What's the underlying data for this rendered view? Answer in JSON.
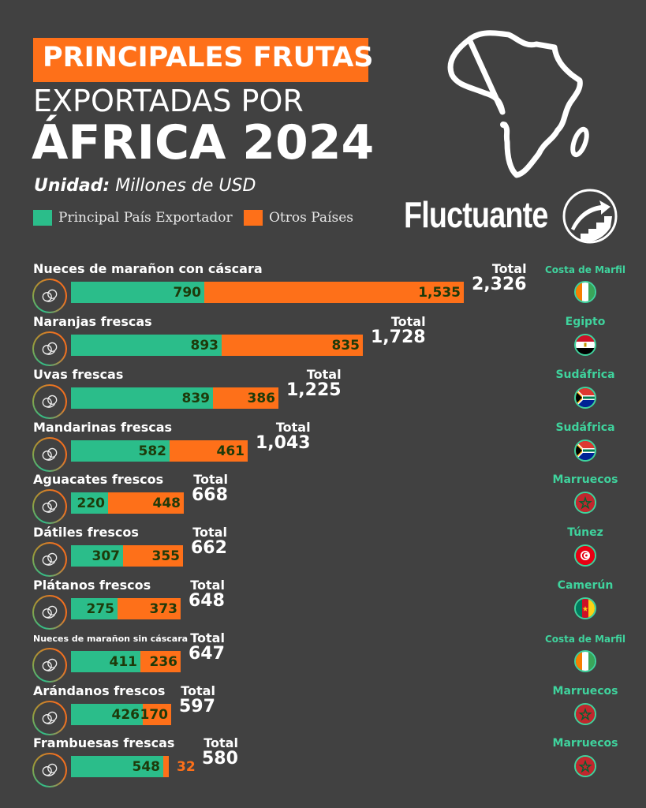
{
  "header": {
    "title_line1": "PRINCIPALES FRUTAS",
    "title_line2": "EXPORTADAS POR",
    "title_line3": "ÁFRICA 2024",
    "unit_label": "Unidad:",
    "unit_value": " Millones de USD",
    "brand": "Fluctuante"
  },
  "legend": {
    "items": [
      {
        "label": "Principal País Exportador",
        "color": "#2bbd8a"
      },
      {
        "label": "Otros Países",
        "color": "#fe7019"
      }
    ]
  },
  "total_label": "Total",
  "colors": {
    "background": "#414141",
    "green": "#2bbd8a",
    "orange": "#fe7019",
    "country_text": "#3fd39d"
  },
  "rows": [
    {
      "label": "Nueces de marañon con cáscara",
      "principal": "790",
      "otros": "1,535",
      "total": "2,326",
      "country": "Costa de Marfil",
      "flag": "ivory-coast"
    },
    {
      "label": "Naranjas frescas",
      "principal": "893",
      "otros": "835",
      "total": "1,728",
      "country": "Egipto",
      "flag": "egypt"
    },
    {
      "label": "Uvas frescas",
      "principal": "839",
      "otros": "386",
      "total": "1,225",
      "country": "Sudáfrica",
      "flag": "south-africa"
    },
    {
      "label": "Mandarinas frescas",
      "principal": "582",
      "otros": "461",
      "total": "1,043",
      "country": "Sudáfrica",
      "flag": "south-africa"
    },
    {
      "label": "Aguacates frescos",
      "principal": "220",
      "otros": "448",
      "total": "668",
      "country": "Marruecos",
      "flag": "morocco"
    },
    {
      "label": "Dátiles frescos",
      "principal": "307",
      "otros": "355",
      "total": "662",
      "country": "Túnez",
      "flag": "tunisia"
    },
    {
      "label": "Plátanos frescos",
      "principal": "275",
      "otros": "373",
      "total": "648",
      "country": "Camerún",
      "flag": "cameroon"
    },
    {
      "label": "Nueces de marañon sin cáscara",
      "principal": "411",
      "otros": "236",
      "total": "647",
      "country": "Costa de Marfil",
      "flag": "ivory-coast"
    },
    {
      "label": "Arándanos frescos",
      "principal": "426",
      "otros": "170",
      "total": "597",
      "country": "Marruecos",
      "flag": "morocco"
    },
    {
      "label": "Frambuesas frescas",
      "principal": "548",
      "otros": "32",
      "total": "580",
      "country": "Marruecos",
      "flag": "morocco"
    }
  ],
  "chart_data": {
    "type": "bar",
    "orientation": "horizontal",
    "stacked": true,
    "title": "Principales frutas exportadas por África 2024",
    "subtitle": "Unidad: Millones de USD",
    "categories": [
      "Nueces de marañon con cáscara",
      "Naranjas frescas",
      "Uvas frescas",
      "Mandarinas frescas",
      "Aguacates frescos",
      "Dátiles frescos",
      "Plátanos frescos",
      "Nueces de marañon sin cáscara",
      "Arándanos frescos",
      "Frambuesas frescas"
    ],
    "series": [
      {
        "name": "Principal País Exportador",
        "color": "#2bbd8a",
        "values": [
          790,
          893,
          839,
          582,
          220,
          307,
          275,
          411,
          426,
          548
        ]
      },
      {
        "name": "Otros Países",
        "color": "#fe7019",
        "values": [
          1535,
          835,
          386,
          461,
          448,
          355,
          373,
          236,
          170,
          32
        ]
      }
    ],
    "totals": [
      2326,
      1728,
      1225,
      1043,
      668,
      662,
      648,
      647,
      597,
      580
    ],
    "principal_exporter": [
      "Costa de Marfil",
      "Egipto",
      "Sudáfrica",
      "Sudáfrica",
      "Marruecos",
      "Túnez",
      "Camerún",
      "Costa de Marfil",
      "Marruecos",
      "Marruecos"
    ],
    "legend_position": "top-left",
    "grid": false
  }
}
